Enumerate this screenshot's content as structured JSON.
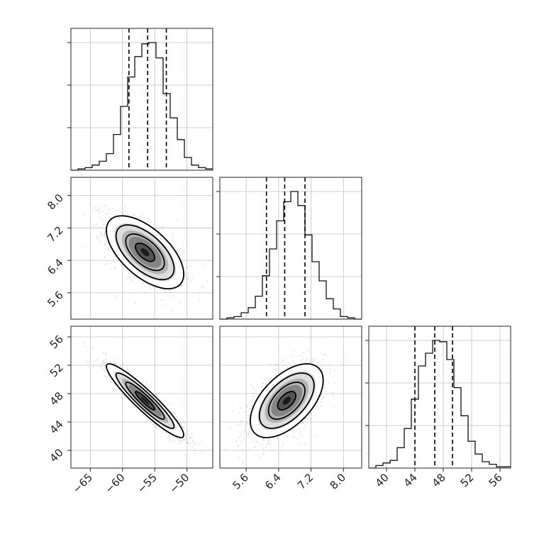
{
  "chart_data": {
    "type": "corner",
    "parameters": [
      {
        "ticks": [
          -65,
          -60,
          -55,
          -50
        ],
        "tick_labels": [
          "−65",
          "−60",
          "−55",
          "−50"
        ],
        "range": [
          -68,
          -46
        ],
        "quantiles": [
          -59,
          -56.1,
          -53.2
        ],
        "hist_edges_start": -68,
        "hist_bin_width": 1.1,
        "hist_counts": [
          0,
          1,
          2,
          4,
          7,
          13,
          28,
          50,
          73,
          89,
          99,
          100,
          88,
          60,
          41,
          24,
          10,
          4,
          2,
          1
        ]
      },
      {
        "ticks": [
          5.6,
          6.4,
          7.2,
          8.0
        ],
        "tick_labels": [
          "5.6",
          "6.4",
          "7.2",
          "8.0"
        ],
        "range": [
          4.95,
          8.45
        ],
        "quantiles": [
          6.1,
          6.55,
          7.05
        ],
        "hist_edges_start": 4.95,
        "hist_bin_width": 0.175,
        "hist_counts": [
          0,
          1,
          2,
          5,
          9,
          18,
          34,
          55,
          77,
          92,
          100,
          89,
          66,
          45,
          30,
          16,
          8,
          2,
          1,
          0
        ]
      },
      {
        "ticks": [
          40,
          44,
          48,
          52,
          56
        ],
        "tick_labels": [
          "40",
          "44",
          "48",
          "52",
          "56"
        ],
        "range": [
          37.5,
          57.5
        ],
        "quantiles": [
          44,
          46.8,
          49.3
        ],
        "hist_edges_start": 37.5,
        "hist_bin_width": 1.0,
        "hist_counts": [
          0,
          2,
          4,
          6,
          16,
          31,
          54,
          80,
          90,
          100,
          99,
          85,
          63,
          41,
          21,
          11,
          5,
          3,
          1,
          1
        ]
      }
    ],
    "pairs": [
      {
        "x_param": 0,
        "y_param": 1,
        "mean": [
          -56.5,
          6.6
        ],
        "sd": [
          3.0,
          0.45
        ],
        "rho": -0.6,
        "contour_levels": [
          0.5,
          1.0,
          1.5,
          2.0
        ]
      },
      {
        "x_param": 0,
        "y_param": 2,
        "mean": [
          -56.5,
          47
        ],
        "sd": [
          3.0,
          2.6
        ],
        "rho": -0.93,
        "contour_levels": [
          0.5,
          1.0,
          1.5,
          2.0
        ]
      },
      {
        "x_param": 1,
        "y_param": 2,
        "mean": [
          6.6,
          47
        ],
        "sd": [
          0.45,
          2.6
        ],
        "rho": 0.55,
        "contour_levels": [
          0.5,
          1.0,
          1.5,
          2.0
        ]
      }
    ],
    "grid": true
  },
  "colors": {
    "frame": "#222222",
    "grid": "#bfbfbf",
    "points": "#9a9a9a",
    "contour": "#000000",
    "density_low": "#ffffff",
    "density_high": "#000000"
  }
}
